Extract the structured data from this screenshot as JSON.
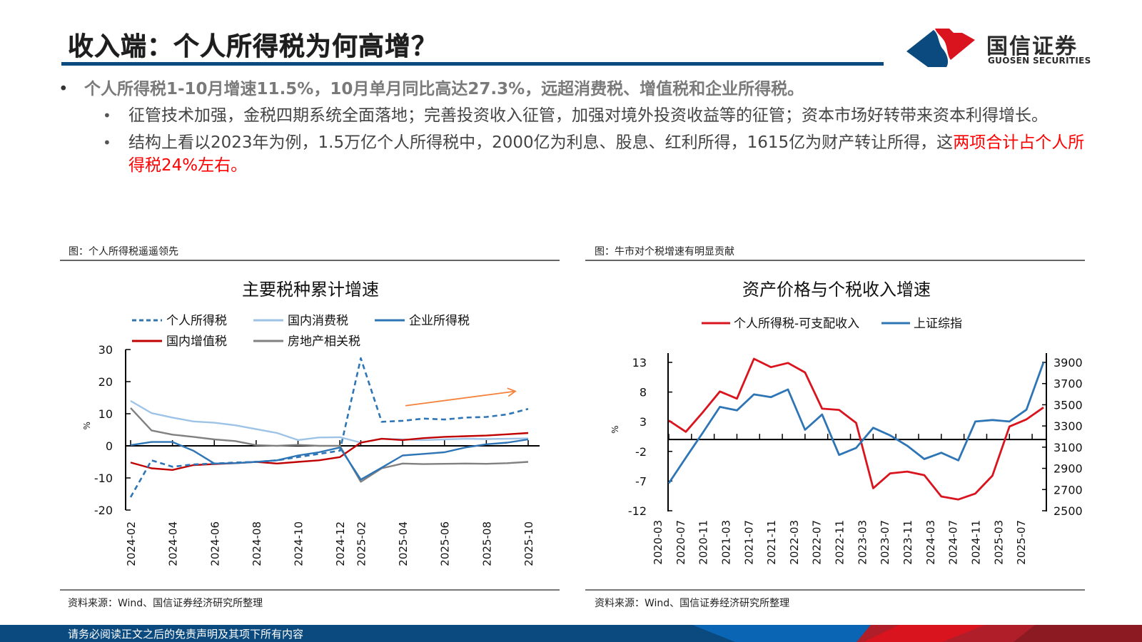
{
  "header": {
    "title": "收入端：个人所得税为何高增？",
    "brand_cn": "国信证券",
    "brand_en": "GUOSEN SECURITIES",
    "colors": {
      "navy": "#0b4a7f",
      "red": "#d9141e",
      "accent_blue": "#0b4a7f"
    }
  },
  "bullets": {
    "main": "个人所得税1-10月增速11.5%，10月单月同比高达27.3%，远超消费税、增值税和企业所得税。",
    "sub": [
      {
        "text": "征管技术加强，金税四期系统全面落地；完善投资收入征管，加强对境外投资收益等的征管；资本市场好转带来资本利得增长。"
      },
      {
        "text": "结构上看以2023年为例，1.5万亿个人所得税中，2000亿为利息、股息、红利所得，1615亿为财产转让所得，这",
        "highlight": "两项合计占个人所得税24%左右。"
      }
    ]
  },
  "figures": {
    "left_caption": "图：个人所得税遥遥领先",
    "right_caption": "图：牛市对个税增速有明显贡献",
    "left_source": "资料来源：Wind、国信证券经济研究所整理",
    "right_source": "资料来源：Wind、国信证券经济研究所整理"
  },
  "footer": {
    "disclaimer": "请务必阅读正文之后的免责声明及其项下所有内容"
  },
  "chart_data": [
    {
      "type": "line",
      "title": "主要税种累计增速",
      "xlabel": "",
      "ylabel": "%",
      "ylim": [
        -20,
        30
      ],
      "yticks": [
        30,
        20,
        10,
        0,
        -10,
        -20
      ],
      "grid": false,
      "legend": "top",
      "x": [
        "2024-02",
        "2024-03",
        "2024-04",
        "2024-05",
        "2024-06",
        "2024-07",
        "2024-08",
        "2024-09",
        "2024-10",
        "2024-11",
        "2024-12",
        "2025-02",
        "2025-03",
        "2025-04",
        "2025-05",
        "2025-06",
        "2025-07",
        "2025-08",
        "2025-09",
        "2025-10"
      ],
      "xtick_labels": [
        "2024-02",
        "2024-04",
        "2024-06",
        "2024-08",
        "2024-10",
        "2024-12",
        "2025-02",
        "2025-04",
        "2025-06",
        "2025-08",
        "2025-10"
      ],
      "series": [
        {
          "name": "个人所得税",
          "color": "#2e75b6",
          "dash": true,
          "values": [
            -16,
            -4.5,
            -6.5,
            -5.8,
            -5.5,
            -5.2,
            -5,
            -4.5,
            -3.5,
            -2.5,
            -1.5,
            27.3,
            7.5,
            7.8,
            8.5,
            8.2,
            8.8,
            9,
            9.8,
            11.5
          ]
        },
        {
          "name": "国内消费税",
          "color": "#9dc3e6",
          "dash": false,
          "values": [
            14,
            10.2,
            8.8,
            7.6,
            7.2,
            6.4,
            5.2,
            4,
            1.8,
            2.6,
            2.7,
            1,
            2.2,
            2,
            1.8,
            2,
            2.2,
            2.1,
            2.2,
            2.3
          ]
        },
        {
          "name": "企业所得税",
          "color": "#2e75b6",
          "dash": false,
          "values": [
            0.2,
            1.2,
            1.2,
            -1.5,
            -5.5,
            -5.4,
            -5,
            -4.5,
            -3,
            -2,
            -0.5,
            -10.5,
            -6.8,
            -3,
            -2.5,
            -2,
            -0.5,
            0.5,
            1,
            2
          ]
        },
        {
          "name": "国内增值税",
          "color": "#c00000",
          "dash": false,
          "values": [
            -5.2,
            -7,
            -7.5,
            -6,
            -5.7,
            -5.4,
            -5,
            -5.5,
            -5,
            -4.5,
            -3.5,
            1,
            2.2,
            1.8,
            2.4,
            2.8,
            3,
            3.2,
            3.6,
            4
          ]
        },
        {
          "name": "房地产相关税",
          "color": "#808080",
          "dash": false,
          "values": [
            11.8,
            4.8,
            3.5,
            2.8,
            2,
            1.5,
            0.2,
            0,
            0.3,
            0,
            0,
            -11.2,
            -7,
            -5.5,
            -5.7,
            -5.6,
            -5.5,
            -5.6,
            -5.4,
            -5
          ]
        }
      ],
      "annotations": [
        {
          "type": "arrow",
          "color": "#f4823a",
          "from": [
            "2025-04",
            12.5
          ],
          "to": [
            "2025-10",
            17
          ]
        }
      ]
    },
    {
      "type": "line",
      "title": "资产价格与个税收入增速",
      "xlabel": "",
      "ylabel": "%",
      "ylim": [
        -12,
        13
      ],
      "yticks": [
        13,
        8,
        3,
        -2,
        -7,
        -12
      ],
      "y2lim": [
        2500,
        3900
      ],
      "y2ticks": [
        3900,
        3700,
        3500,
        3300,
        3100,
        2900,
        2700,
        2500
      ],
      "grid": false,
      "legend": "top",
      "x": [
        "2020-03",
        "2020-06",
        "2020-09",
        "2020-12",
        "2021-03",
        "2021-06",
        "2021-09",
        "2021-12",
        "2022-03",
        "2022-06",
        "2022-09",
        "2022-12",
        "2023-03",
        "2023-06",
        "2023-09",
        "2023-12",
        "2024-03",
        "2024-06",
        "2024-09",
        "2024-12",
        "2025-03",
        "2025-06",
        "2025-09"
      ],
      "xtick_labels": [
        "2020-03",
        "2020-07",
        "2020-11",
        "2021-03",
        "2021-07",
        "2021-11",
        "2022-03",
        "2022-07",
        "2022-11",
        "2023-03",
        "2023-07",
        "2023-11",
        "2024-03",
        "2024-07",
        "2024-11",
        "2025-03",
        "2025-07"
      ],
      "series": [
        {
          "name": "个人所得税-可支配收入",
          "color": "#d9141e",
          "axis": "left",
          "values": [
            3.2,
            1.3,
            4.6,
            8.1,
            6.9,
            13.6,
            12.2,
            12.9,
            11.3,
            5.2,
            5.0,
            2.8,
            -8.2,
            -5.7,
            -5.4,
            -6.0,
            -9.6,
            -10.1,
            -9.1,
            -6.1,
            2.2,
            3.4,
            5.4
          ]
        },
        {
          "name": "上证综指",
          "color": "#2e75b6",
          "axis": "right",
          "values": [
            2759,
            3001,
            3237,
            3480,
            3447,
            3598,
            3572,
            3644,
            3264,
            3408,
            3027,
            3093,
            3283,
            3211,
            3113,
            2988,
            3047,
            2975,
            3342,
            3356,
            3342,
            3454,
            3900
          ]
        }
      ]
    }
  ]
}
